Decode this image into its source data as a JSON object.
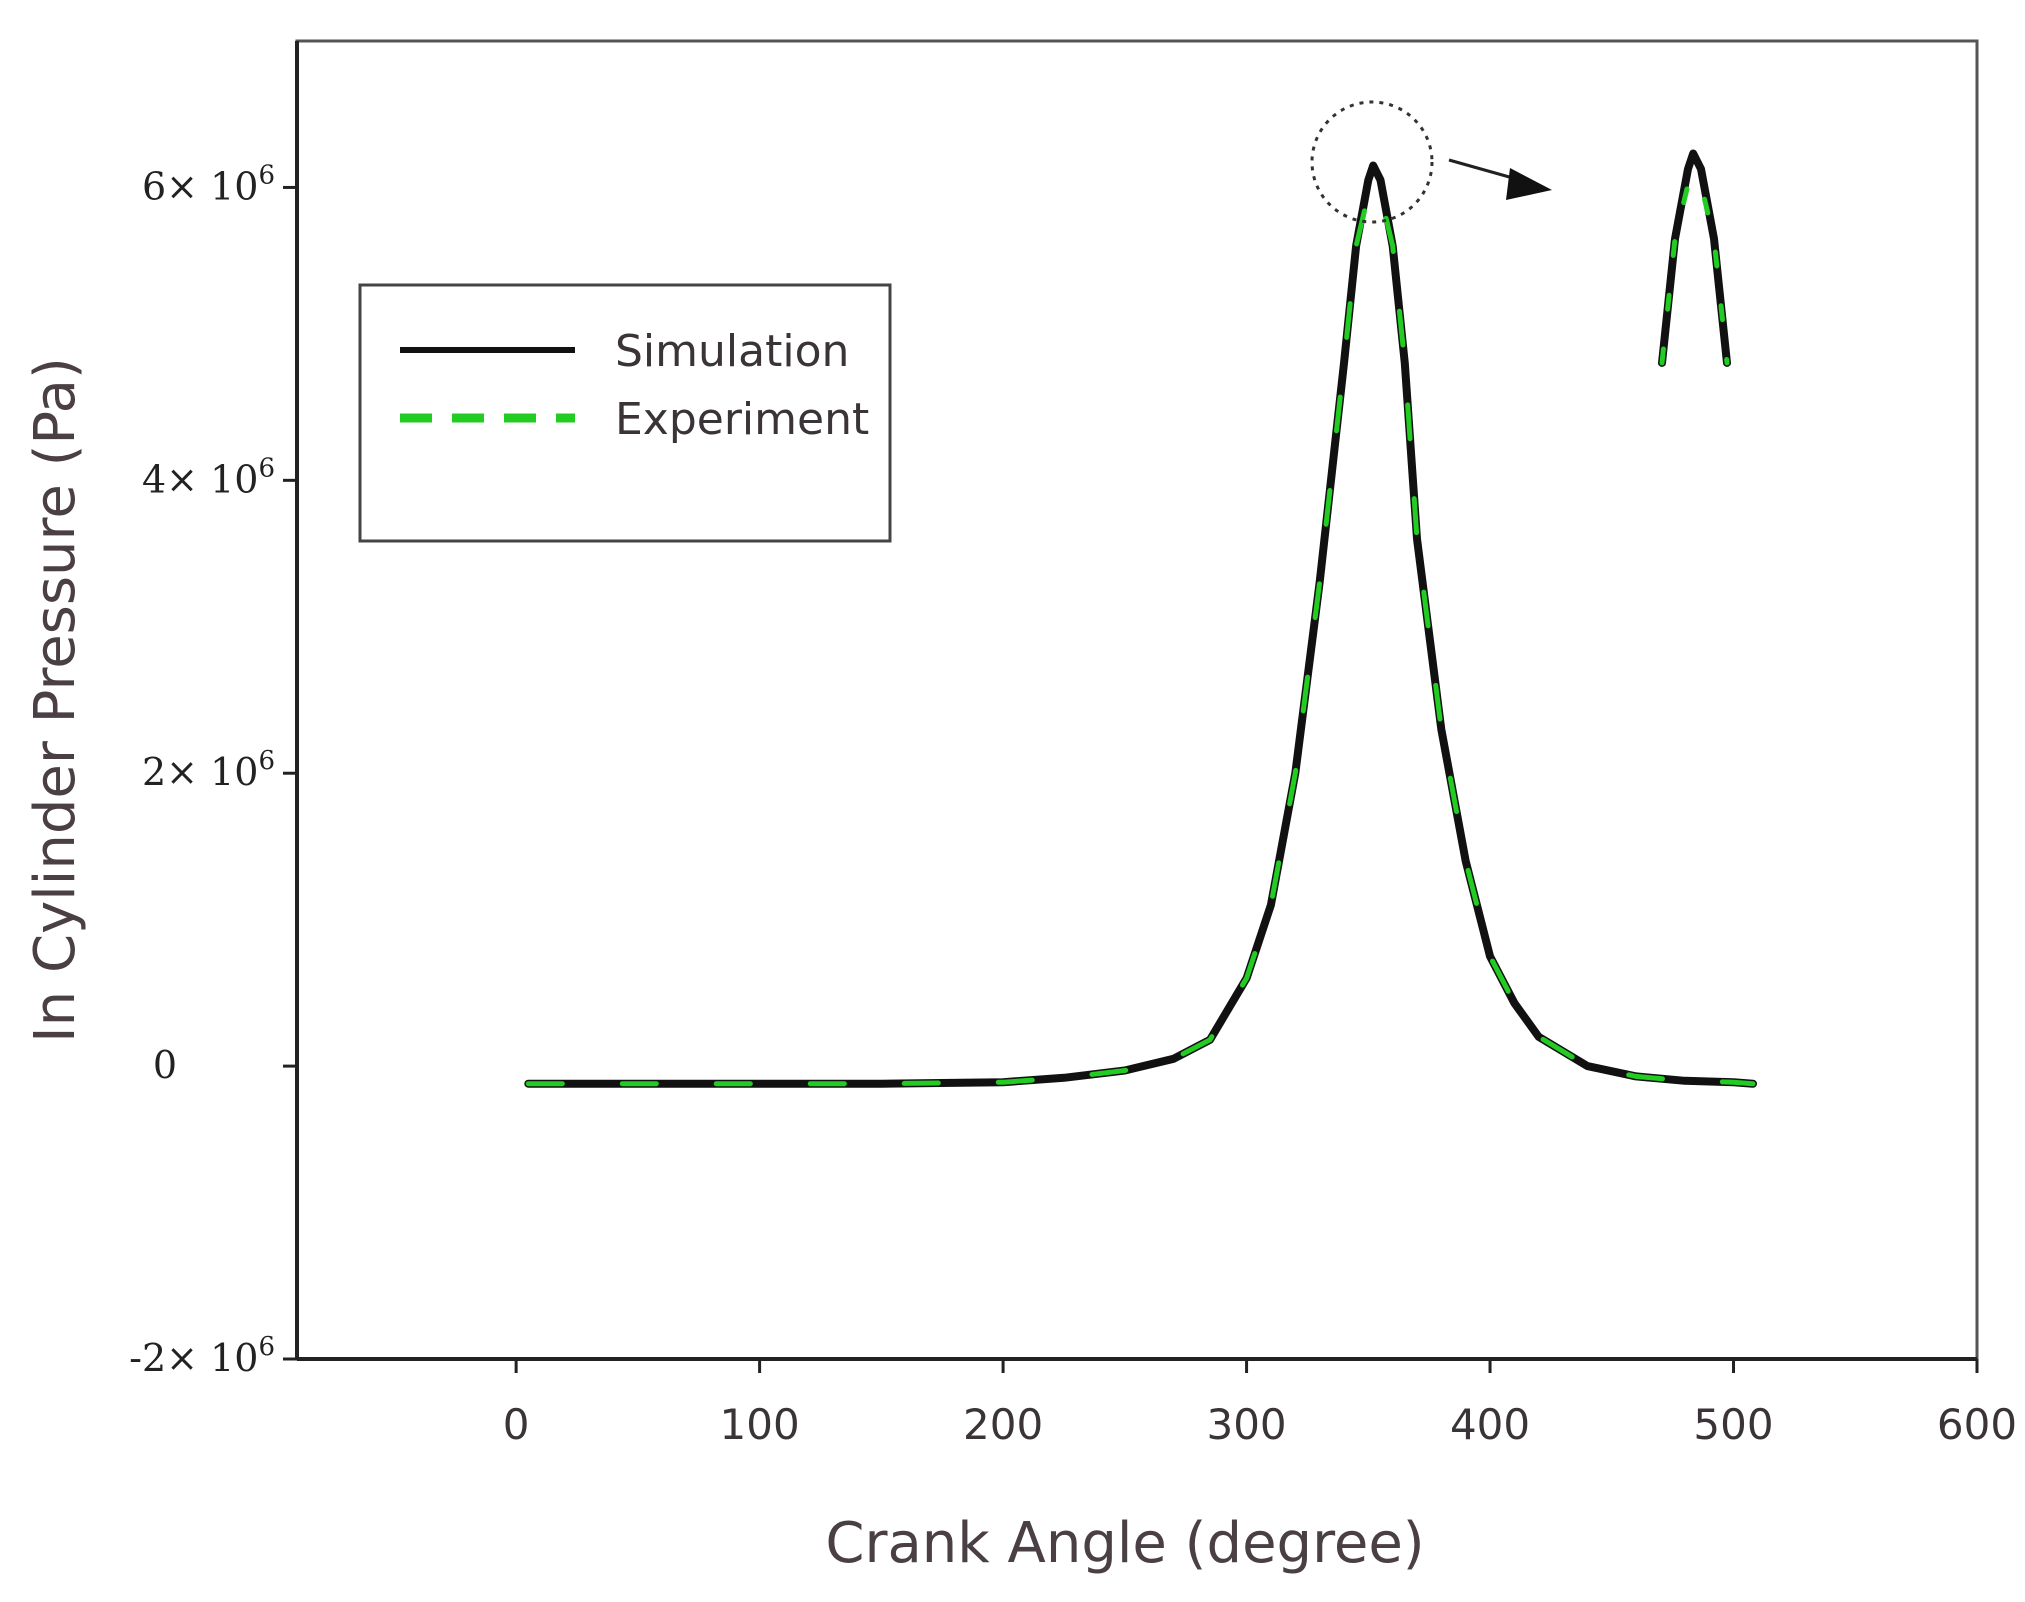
{
  "chart_data": {
    "type": "line",
    "title": "",
    "xlabel": "Crank Angle (degree)",
    "ylabel": "In Cylinder Pressure (Pa)",
    "xlim": [
      -90,
      600
    ],
    "ylim": [
      -2000000,
      7000000
    ],
    "xticks": [
      0,
      100,
      200,
      300,
      400,
      500,
      600
    ],
    "xtick_labels": [
      "0",
      "100",
      "200",
      "300",
      "400",
      "500",
      "600"
    ],
    "yticks": [
      -2000000,
      0,
      2000000,
      4000000,
      6000000
    ],
    "ytick_labels": [
      {
        "mantissa": "-2×",
        "base": "10",
        "exp": "6"
      },
      {
        "mantissa": "0",
        "base": "",
        "exp": ""
      },
      {
        "mantissa": "2×",
        "base": "10",
        "exp": "6"
      },
      {
        "mantissa": "4×",
        "base": "10",
        "exp": "6"
      },
      {
        "mantissa": "6×",
        "base": "10",
        "exp": "6"
      }
    ],
    "grid": false,
    "legend_position": "upper-left",
    "inset": "zoomed view of the peak near 350 degrees",
    "series": [
      {
        "name": "Simulation",
        "color": "#111111",
        "style": "solid",
        "x": [
          5,
          50,
          100,
          150,
          200,
          225,
          250,
          270,
          285,
          300,
          310,
          320,
          330,
          340,
          345,
          350,
          352,
          355,
          360,
          365,
          370,
          380,
          390,
          400,
          410,
          420,
          440,
          460,
          480,
          500,
          508
        ],
        "y": [
          -120000,
          -120000,
          -120000,
          -120000,
          -110000,
          -80000,
          -30000,
          50000,
          180000,
          600000,
          1100000,
          2000000,
          3300000,
          4800000,
          5600000,
          6050000,
          6150000,
          6050000,
          5600000,
          4800000,
          3600000,
          2300000,
          1400000,
          750000,
          430000,
          200000,
          0,
          -70000,
          -100000,
          -110000,
          -120000
        ]
      },
      {
        "name": "Experiment",
        "color": "#22cc22",
        "style": "dashed",
        "x": [
          5,
          50,
          100,
          150,
          200,
          225,
          250,
          270,
          285,
          300,
          310,
          320,
          330,
          340,
          345,
          350,
          352,
          355,
          360,
          365,
          370,
          380,
          390,
          400,
          410,
          420,
          440,
          460,
          480,
          500,
          508
        ],
        "y": [
          -120000,
          -120000,
          -120000,
          -120000,
          -110000,
          -80000,
          -30000,
          50000,
          180000,
          600000,
          1100000,
          2000000,
          3300000,
          4800000,
          5600000,
          5950000,
          6000000,
          5950000,
          5600000,
          4800000,
          3600000,
          2300000,
          1400000,
          750000,
          430000,
          200000,
          0,
          -70000,
          -100000,
          -110000,
          -120000
        ]
      }
    ]
  }
}
